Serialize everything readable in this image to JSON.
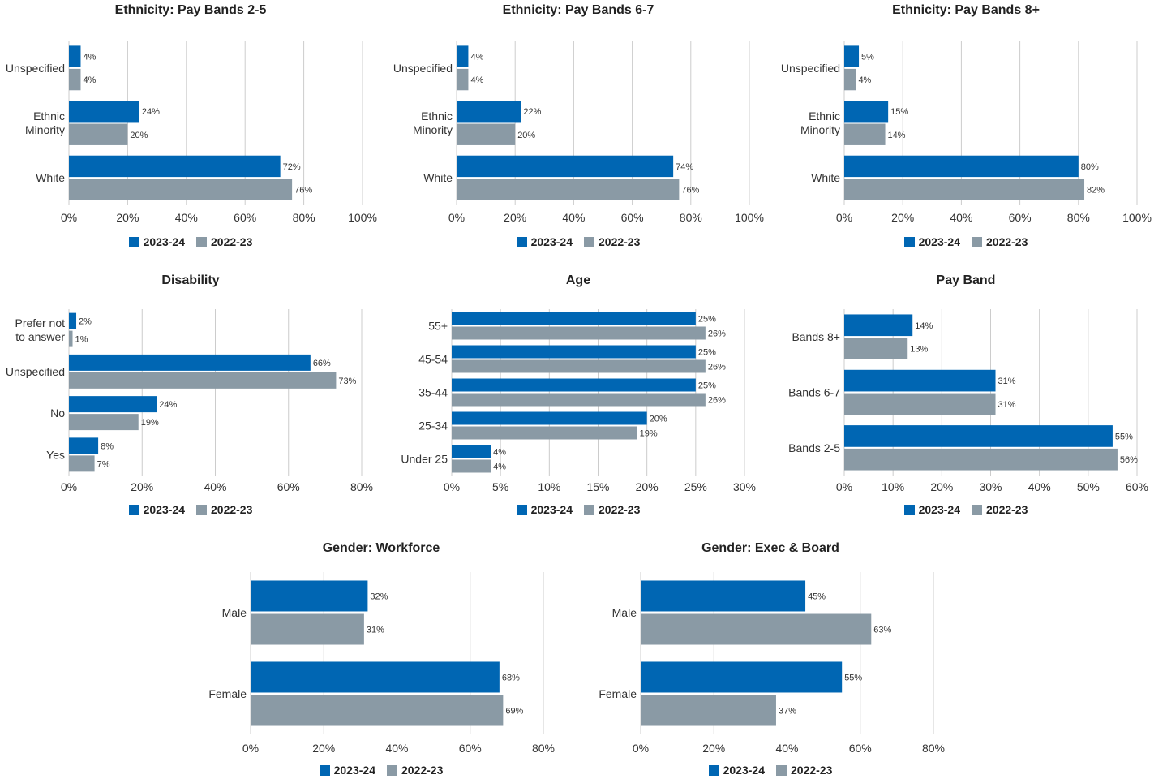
{
  "colors": {
    "series_2023": "#0066b3",
    "series_2022": "#8a9aa5",
    "grid": "#cccccc"
  },
  "chart_data": [
    {
      "type": "bar",
      "orientation": "horizontal",
      "title": "Ethnicity: Pay Bands 2-5",
      "categories": [
        "Unspecified",
        "Ethnic Minority",
        "White"
      ],
      "category_lines": [
        [
          "Unspecified"
        ],
        [
          "Ethnic",
          "Minority"
        ],
        [
          "White"
        ]
      ],
      "series": [
        {
          "name": "2023-24",
          "values": [
            4,
            24,
            72
          ]
        },
        {
          "name": "2022-23",
          "values": [
            4,
            20,
            76
          ]
        }
      ],
      "xlim": [
        0,
        100
      ],
      "xticks": [
        0,
        20,
        40,
        60,
        80,
        100
      ],
      "tick_suffix": "%",
      "grid": true,
      "legend": "bottom"
    },
    {
      "type": "bar",
      "orientation": "horizontal",
      "title": "Ethnicity: Pay Bands 6-7",
      "categories": [
        "Unspecified",
        "Ethnic Minority",
        "White"
      ],
      "category_lines": [
        [
          "Unspecified"
        ],
        [
          "Ethnic",
          "Minority"
        ],
        [
          "White"
        ]
      ],
      "series": [
        {
          "name": "2023-24",
          "values": [
            4,
            22,
            74
          ]
        },
        {
          "name": "2022-23",
          "values": [
            4,
            20,
            76
          ]
        }
      ],
      "xlim": [
        0,
        100
      ],
      "xticks": [
        0,
        20,
        40,
        60,
        80,
        100
      ],
      "tick_suffix": "%",
      "grid": true,
      "legend": "bottom"
    },
    {
      "type": "bar",
      "orientation": "horizontal",
      "title": "Ethnicity: Pay Bands 8+",
      "categories": [
        "Unspecified",
        "Ethnic Minority",
        "White"
      ],
      "category_lines": [
        [
          "Unspecified"
        ],
        [
          "Ethnic",
          "Minority"
        ],
        [
          "White"
        ]
      ],
      "series": [
        {
          "name": "2023-24",
          "values": [
            5,
            15,
            80
          ]
        },
        {
          "name": "2022-23",
          "values": [
            4,
            14,
            82
          ]
        }
      ],
      "xlim": [
        0,
        100
      ],
      "xticks": [
        0,
        20,
        40,
        60,
        80,
        100
      ],
      "tick_suffix": "%",
      "grid": true,
      "legend": "bottom"
    },
    {
      "type": "bar",
      "orientation": "horizontal",
      "title": "Disability",
      "categories": [
        "Prefer not to answer",
        "Unspecified",
        "No",
        "Yes"
      ],
      "category_lines": [
        [
          "Prefer not",
          "to answer"
        ],
        [
          "Unspecified"
        ],
        [
          "No"
        ],
        [
          "Yes"
        ]
      ],
      "series": [
        {
          "name": "2023-24",
          "values": [
            2,
            66,
            24,
            8
          ]
        },
        {
          "name": "2022-23",
          "values": [
            1,
            73,
            19,
            7
          ]
        }
      ],
      "xlim": [
        0,
        80
      ],
      "xticks": [
        0,
        20,
        40,
        60,
        80
      ],
      "tick_suffix": "%",
      "grid": true,
      "legend": "bottom"
    },
    {
      "type": "bar",
      "orientation": "horizontal",
      "title": "Age",
      "categories": [
        "55+",
        "45-54",
        "35-44",
        "25-34",
        "Under 25"
      ],
      "category_lines": [
        [
          "55+"
        ],
        [
          "45-54"
        ],
        [
          "35-44"
        ],
        [
          "25-34"
        ],
        [
          "Under 25"
        ]
      ],
      "series": [
        {
          "name": "2023-24",
          "values": [
            25,
            25,
            25,
            20,
            4
          ]
        },
        {
          "name": "2022-23",
          "values": [
            26,
            26,
            26,
            19,
            4
          ]
        }
      ],
      "xlim": [
        0,
        30
      ],
      "xticks": [
        0,
        5,
        10,
        15,
        20,
        25,
        30
      ],
      "tick_suffix": "%",
      "grid": true,
      "legend": "bottom"
    },
    {
      "type": "bar",
      "orientation": "horizontal",
      "title": "Pay Band",
      "categories": [
        "Bands 8+",
        "Bands 6-7",
        "Bands 2-5"
      ],
      "category_lines": [
        [
          "Bands 8+"
        ],
        [
          "Bands 6-7"
        ],
        [
          "Bands 2-5"
        ]
      ],
      "series": [
        {
          "name": "2023-24",
          "values": [
            14,
            31,
            55
          ]
        },
        {
          "name": "2022-23",
          "values": [
            13,
            31,
            56
          ]
        }
      ],
      "xlim": [
        0,
        60
      ],
      "xticks": [
        0,
        10,
        20,
        30,
        40,
        50,
        60
      ],
      "tick_suffix": "%",
      "grid": true,
      "legend": "bottom"
    },
    {
      "type": "bar",
      "orientation": "horizontal",
      "title": "Gender: Workforce",
      "categories": [
        "Male",
        "Female"
      ],
      "category_lines": [
        [
          "Male"
        ],
        [
          "Female"
        ]
      ],
      "series": [
        {
          "name": "2023-24",
          "values": [
            32,
            68
          ]
        },
        {
          "name": "2022-23",
          "values": [
            31,
            69
          ]
        }
      ],
      "xlim": [
        0,
        80
      ],
      "xticks": [
        0,
        20,
        40,
        60,
        80
      ],
      "tick_suffix": "%",
      "grid": true,
      "legend": "bottom"
    },
    {
      "type": "bar",
      "orientation": "horizontal",
      "title": "Gender: Exec & Board",
      "categories": [
        "Male",
        "Female"
      ],
      "category_lines": [
        [
          "Male"
        ],
        [
          "Female"
        ]
      ],
      "series": [
        {
          "name": "2023-24",
          "values": [
            45,
            55
          ]
        },
        {
          "name": "2022-23",
          "values": [
            63,
            37
          ]
        }
      ],
      "xlim": [
        0,
        80
      ],
      "xticks": [
        0,
        20,
        40,
        60,
        80
      ],
      "tick_suffix": "%",
      "grid": true,
      "legend": "bottom"
    }
  ]
}
